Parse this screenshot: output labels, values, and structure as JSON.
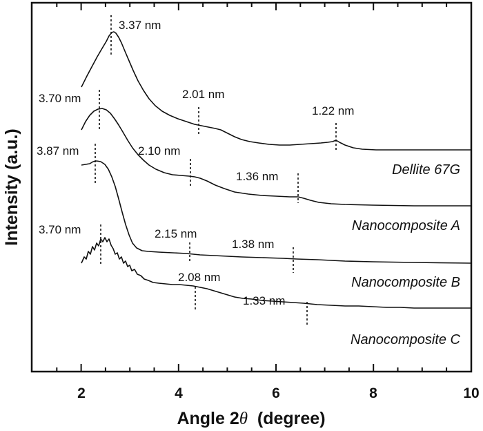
{
  "chart_data": {
    "type": "line",
    "title": "",
    "xlabel": "Angle 2θ  (degree)",
    "xlabel_parts": {
      "prefix": "Angle 2",
      "symbol": "θ",
      "suffix": "  (degree)"
    },
    "ylabel": "Intensity (a.u.)",
    "xlim": [
      1,
      10
    ],
    "ylim": null,
    "x_ticks": [
      2,
      4,
      6,
      8,
      10
    ],
    "x_minor_step": 0.5,
    "y_ticks": [],
    "grid": false,
    "legend": "inline labels to the right of each curve",
    "series": [
      {
        "name": "Dellite 67G",
        "offset_order": 1,
        "x": [
          2.0,
          2.2,
          2.4,
          2.55,
          2.65,
          2.8,
          3.0,
          3.3,
          3.6,
          4.0,
          4.4,
          4.8,
          5.2,
          5.6,
          6.0,
          6.5,
          7.0,
          7.25,
          7.6,
          8.0,
          9.0,
          10.0
        ],
        "y": [
          0.55,
          0.75,
          0.92,
          1.0,
          0.99,
          0.88,
          0.72,
          0.55,
          0.45,
          0.4,
          0.38,
          0.36,
          0.32,
          0.3,
          0.29,
          0.29,
          0.3,
          0.32,
          0.28,
          0.27,
          0.27,
          0.27
        ],
        "peaks": [
          {
            "label": "3.37 nm",
            "x": 2.6
          },
          {
            "label": "2.01 nm",
            "x": 4.4
          },
          {
            "label": "1.22 nm",
            "x": 7.25
          }
        ]
      },
      {
        "name": "Nanocomposite A",
        "offset_order": 2,
        "x": [
          2.0,
          2.2,
          2.35,
          2.5,
          2.7,
          3.0,
          3.3,
          3.6,
          3.9,
          4.2,
          4.5,
          4.9,
          5.3,
          5.8,
          6.2,
          6.5,
          6.8,
          7.2,
          8.0,
          9.0,
          10.0
        ],
        "y": [
          0.58,
          0.7,
          0.75,
          0.74,
          0.66,
          0.55,
          0.45,
          0.4,
          0.38,
          0.38,
          0.36,
          0.33,
          0.31,
          0.3,
          0.3,
          0.3,
          0.28,
          0.27,
          0.26,
          0.26,
          0.26
        ],
        "peaks": [
          {
            "label": "3.70 nm",
            "x": 2.35
          },
          {
            "label": "2.10 nm",
            "x": 4.2
          },
          {
            "label": "1.36 nm",
            "x": 6.45
          }
        ]
      },
      {
        "name": "Nanocomposite B",
        "offset_order": 3,
        "x": [
          2.0,
          2.15,
          2.3,
          2.45,
          2.6,
          2.75,
          2.9,
          3.0,
          3.1,
          3.3,
          3.6,
          4.0,
          4.2,
          5.0,
          6.0,
          6.3,
          7.0,
          8.0,
          9.0,
          10.0
        ],
        "y": [
          0.72,
          0.73,
          0.75,
          0.72,
          0.62,
          0.45,
          0.3,
          0.22,
          0.2,
          0.19,
          0.18,
          0.18,
          0.18,
          0.17,
          0.16,
          0.16,
          0.15,
          0.15,
          0.14,
          0.14
        ],
        "peaks": [
          {
            "label": "3.87 nm",
            "x": 2.28
          },
          {
            "label": "2.15 nm",
            "x": 4.2
          },
          {
            "label": "1.38 nm",
            "x": 6.3
          }
        ]
      },
      {
        "name": "Nanocomposite C",
        "offset_order": 4,
        "x": [
          2.0,
          2.15,
          2.3,
          2.4,
          2.5,
          2.6,
          2.8,
          3.0,
          3.3,
          3.6,
          4.0,
          4.35,
          4.7,
          5.0,
          5.4,
          5.8,
          6.2,
          6.65,
          7.0,
          8.0,
          9.0,
          10.0
        ],
        "y": [
          0.55,
          0.64,
          0.7,
          0.72,
          0.74,
          0.71,
          0.62,
          0.52,
          0.44,
          0.4,
          0.38,
          0.37,
          0.35,
          0.32,
          0.29,
          0.28,
          0.27,
          0.26,
          0.25,
          0.24,
          0.24,
          0.24
        ],
        "peaks": [
          {
            "label": "3.70 nm",
            "x": 2.4
          },
          {
            "label": "2.08 nm",
            "x": 4.35
          },
          {
            "label": "1.33 nm",
            "x": 6.65
          }
        ]
      }
    ]
  },
  "labels": {
    "series": [
      "Dellite 67G",
      "Nanocomposite A",
      "Nanocomposite B",
      "Nanocomposite C"
    ],
    "annotations": [
      "3.37 nm",
      "2.01 nm",
      "1.22 nm",
      "3.70 nm",
      "2.10 nm",
      "1.36 nm",
      "3.87 nm",
      "2.15 nm",
      "1.38 nm",
      "3.70 nm",
      "2.08 nm",
      "1.33 nm"
    ],
    "x_tick_labels": [
      "2",
      "4",
      "6",
      "8",
      "10"
    ],
    "ylabel": "Intensity (a.u.)",
    "xlabel_prefix": "Angle 2",
    "xlabel_symbol": "θ",
    "xlabel_suffix": "  (degree)"
  },
  "colors": {
    "line": "#111111",
    "background": "#ffffff"
  }
}
